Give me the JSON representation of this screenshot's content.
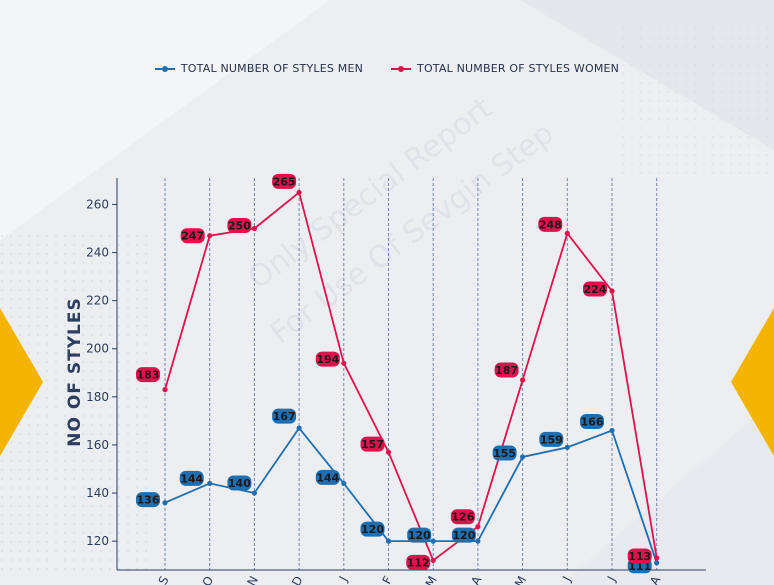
{
  "chart_data": {
    "type": "line",
    "categories": [
      "S",
      "O",
      "N",
      "D",
      "J",
      "F",
      "M",
      "A",
      "M",
      "J",
      "J",
      "A"
    ],
    "series": [
      {
        "name": "TOTAL NUMBER OF STYLES MEN",
        "color": "#1f6fb0",
        "values": [
          136,
          144,
          140,
          167,
          144,
          120,
          120,
          120,
          155,
          159,
          166,
          111
        ]
      },
      {
        "name": "TOTAL NUMBER OF STYLES WOMEN",
        "color": "#e0124d",
        "values": [
          183,
          247,
          250,
          265,
          194,
          157,
          112,
          126,
          187,
          248,
          224,
          113
        ]
      }
    ],
    "ylabel": "NO OF STYLES",
    "xlabel": "",
    "yticks": [
      120,
      140,
      160,
      180,
      200,
      220,
      240,
      260
    ],
    "ylim": [
      108,
      271
    ],
    "grid": "vertical dashed",
    "legend": "top-center"
  },
  "watermark": [
    "Only Special Report",
    "For Use Of Sevgin Step"
  ],
  "decoration_color": "#f5b400"
}
